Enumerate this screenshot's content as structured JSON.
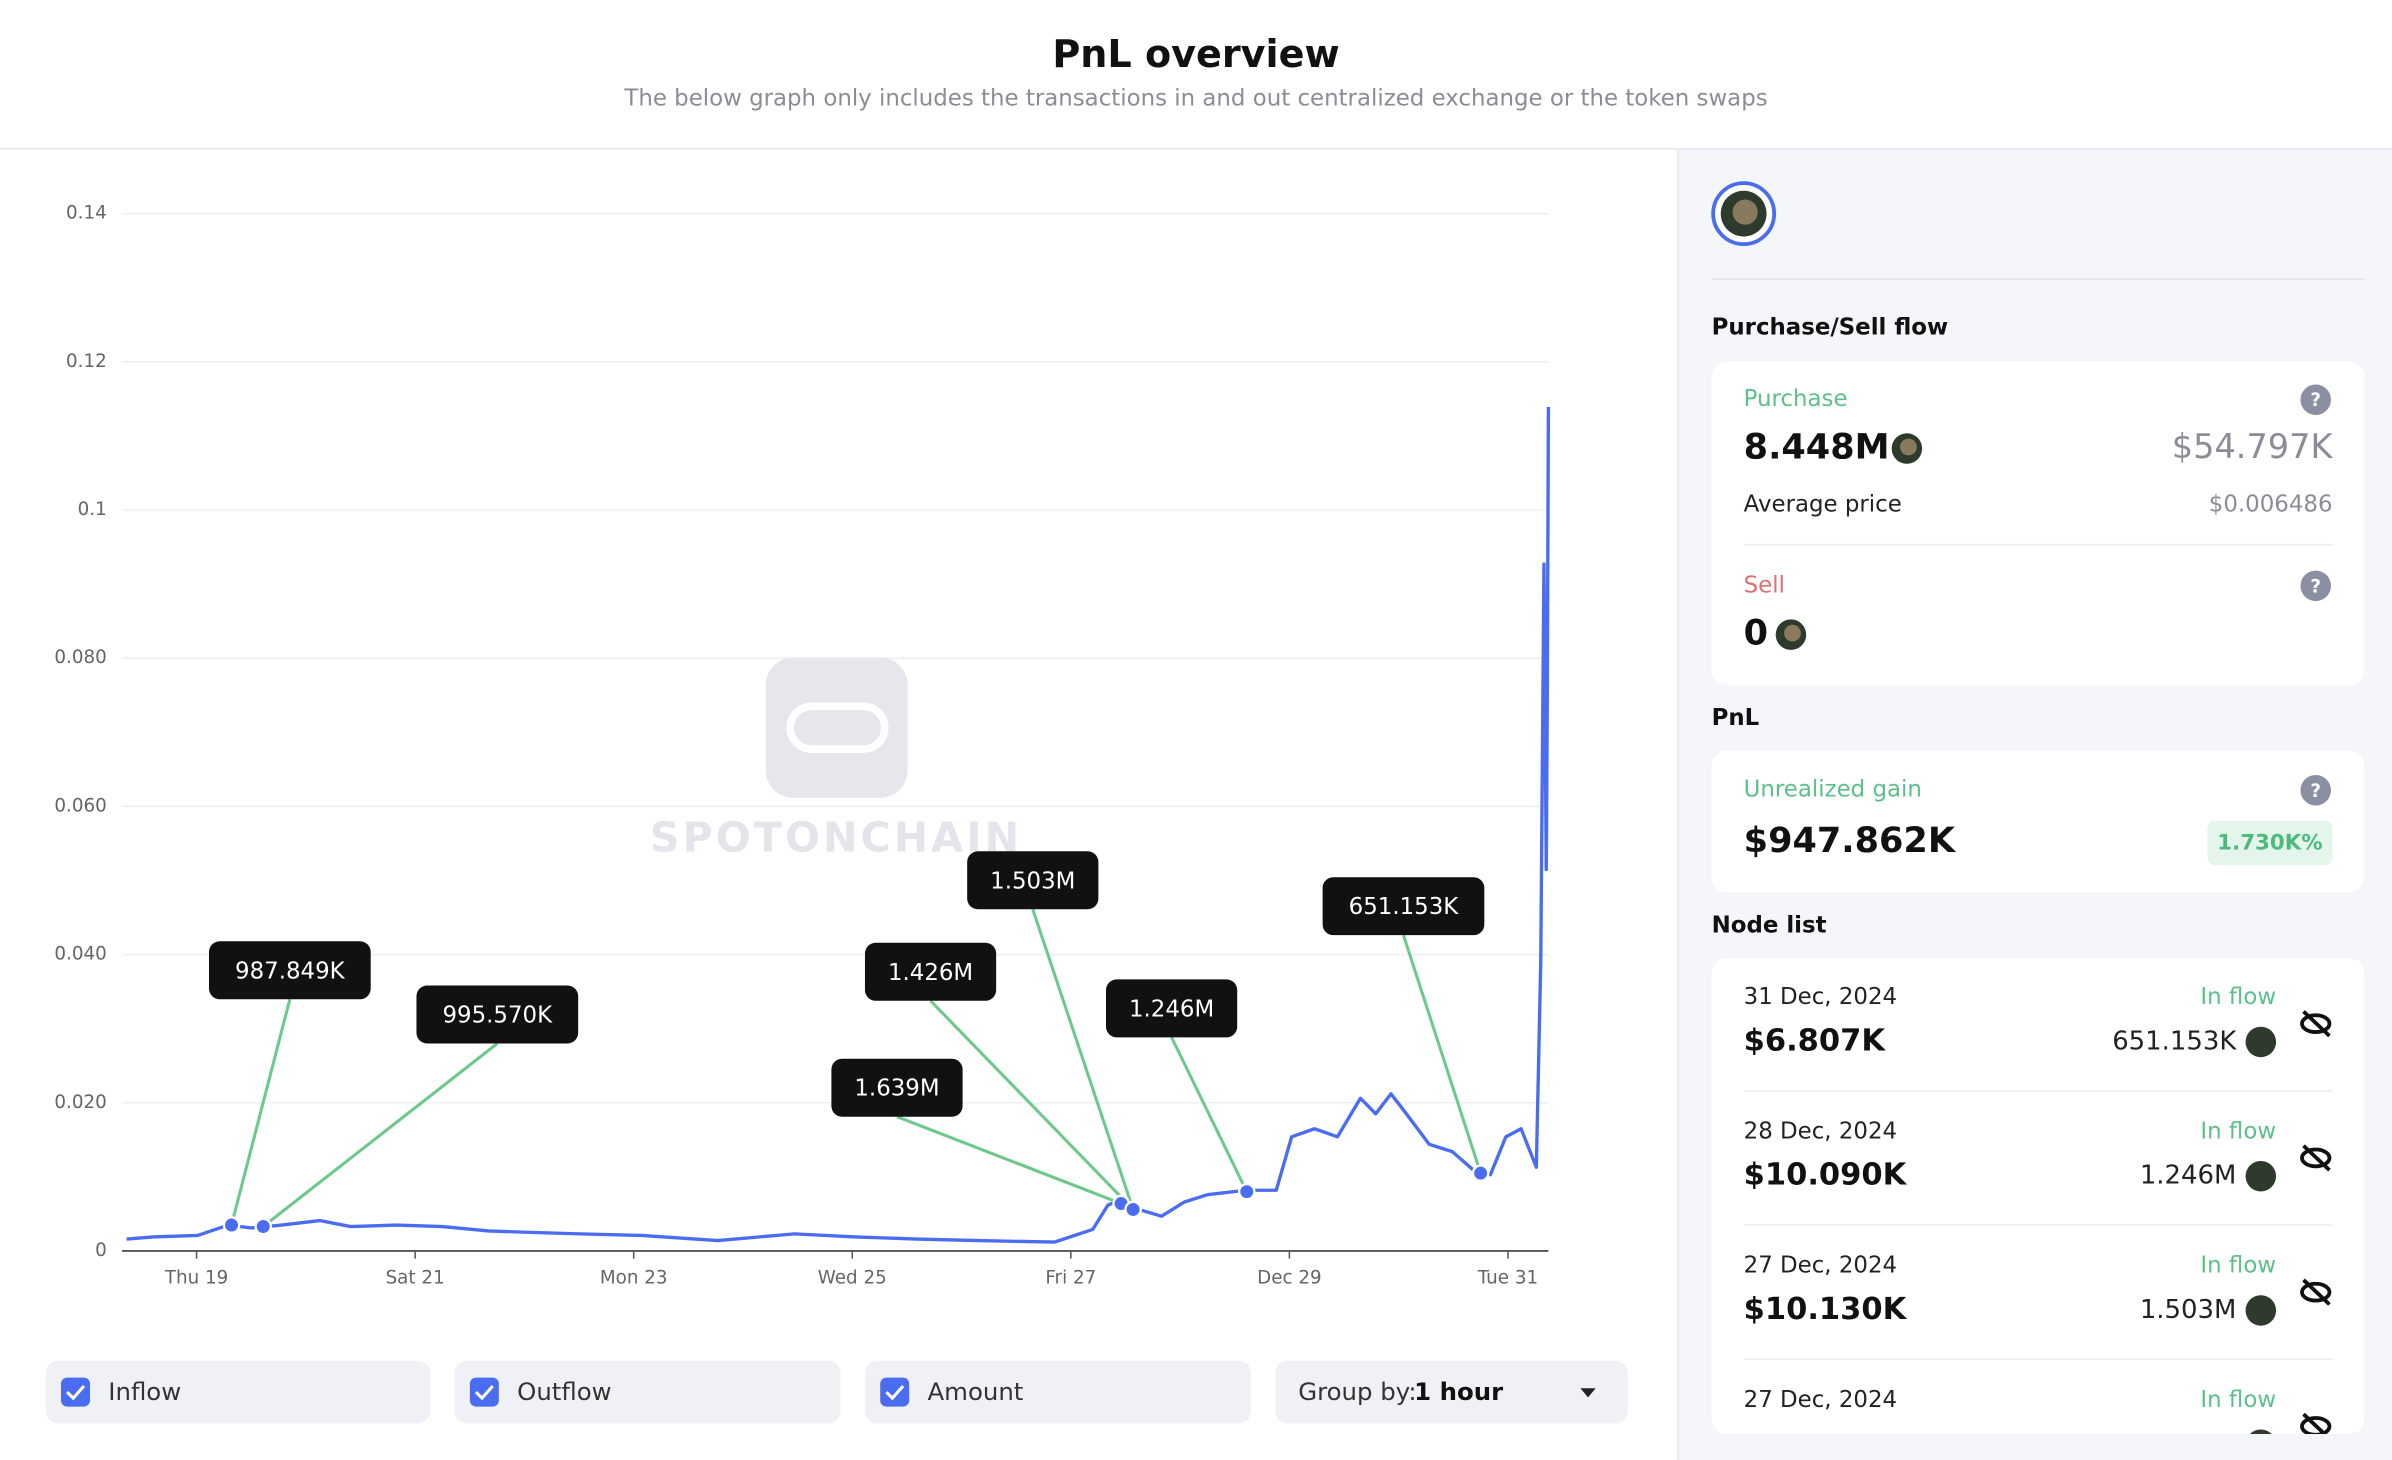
{
  "header": {
    "title": "PnL overview",
    "subtitle": "The below graph only includes the transactions in and out centralized exchange or the token swaps"
  },
  "chart_data": {
    "type": "line",
    "color": "#4a6cf0",
    "grid": true,
    "watermark": "SPOTONCHAIN",
    "x": [
      18.36,
      18.6,
      19.01,
      19.29,
      19.5,
      19.78,
      20.13,
      20.41,
      20.83,
      21.25,
      21.67,
      22.09,
      22.51,
      23.07,
      23.77,
      24.47,
      25.03,
      25.59,
      26.15,
      26.85,
      27.2,
      27.34,
      27.48,
      27.62,
      27.83,
      28.04,
      28.25,
      28.6,
      28.88,
      29.02,
      29.23,
      29.44,
      29.65,
      29.79,
      29.93,
      30.07,
      30.28,
      30.49,
      30.7,
      30.84,
      30.98,
      31.12,
      31.26,
      31.3,
      31.33,
      31.35,
      31.36,
      31.37
    ],
    "values": [
      0.0016,
      0.0019,
      0.0021,
      0.0035,
      0.0031,
      0.0035,
      0.0041,
      0.0033,
      0.0035,
      0.0033,
      0.0027,
      0.0025,
      0.0023,
      0.0021,
      0.0014,
      0.0023,
      0.0019,
      0.0016,
      0.0014,
      0.0012,
      0.0029,
      0.0062,
      0.007,
      0.0056,
      0.0047,
      0.0066,
      0.0076,
      0.0082,
      0.0082,
      0.0154,
      0.0165,
      0.0154,
      0.0206,
      0.0185,
      0.0212,
      0.0185,
      0.0144,
      0.0134,
      0.0107,
      0.0103,
      0.0154,
      0.0165,
      0.0113,
      0.0391,
      0.0927,
      0.0515,
      0.0752,
      0.1139
    ],
    "xlim": [
      18.36,
      31.37
    ],
    "xticks": [
      {
        "value": 19,
        "label": "Thu 19"
      },
      {
        "value": 21,
        "label": "Sat 21"
      },
      {
        "value": 23,
        "label": "Mon 23"
      },
      {
        "value": 25,
        "label": "Wed 25"
      },
      {
        "value": 27,
        "label": "Fri 27"
      },
      {
        "value": 29,
        "label": "Dec 29"
      },
      {
        "value": 31,
        "label": "Tue 31"
      }
    ],
    "ylim": [
      0,
      0.14
    ],
    "yticks": [
      0,
      {
        "value": 0.02,
        "label": "0.020"
      },
      {
        "value": 0.04,
        "label": "0.040"
      },
      {
        "value": 0.06,
        "label": "0.060"
      },
      {
        "value": 0.08,
        "label": "0.080"
      },
      0.1,
      0.12,
      0.14
    ],
    "annotations": [
      {
        "label": "987.849K",
        "x": 19.32,
        "y": 0.0035
      },
      {
        "label": "995.570K",
        "x": 19.61,
        "y": 0.0033
      },
      {
        "label": "1.639M",
        "x": 27.46,
        "y": 0.0064
      },
      {
        "label": "1.426M",
        "x": 27.57,
        "y": 0.0056
      },
      {
        "label": "1.503M",
        "x": 27.57,
        "y": 0.0056
      },
      {
        "label": "1.246M",
        "x": 28.61,
        "y": 0.008
      },
      {
        "label": "651.153K",
        "x": 30.75,
        "y": 0.0105
      }
    ]
  },
  "controls": {
    "checkboxes": [
      "Inflow",
      "Outflow",
      "Amount"
    ],
    "group_by_label": "Group by:",
    "group_by_value": "1 hour"
  },
  "panel": {
    "flow_title": "Purchase/Sell flow",
    "purchase": {
      "label": "Purchase",
      "amount": "8.448M",
      "usd": "$54.797K",
      "avg_label": "Average price",
      "avg": "$0.006486"
    },
    "sell": {
      "label": "Sell",
      "amount": "0"
    },
    "pnl_title": "PnL",
    "pnl": {
      "label": "Unrealized gain",
      "value": "$947.862K",
      "percent": "1.730K%"
    },
    "nodes_title": "Node list",
    "nodes": [
      {
        "date": "31 Dec, 2024",
        "type": "In flow",
        "usd": "$6.807K",
        "amount": "651.153K"
      },
      {
        "date": "28 Dec, 2024",
        "type": "In flow",
        "usd": "$10.090K",
        "amount": "1.246M"
      },
      {
        "date": "27 Dec, 2024",
        "type": "In flow",
        "usd": "$10.130K",
        "amount": "1.503M"
      },
      {
        "date": "27 Dec, 2024",
        "type": "In flow"
      }
    ]
  }
}
